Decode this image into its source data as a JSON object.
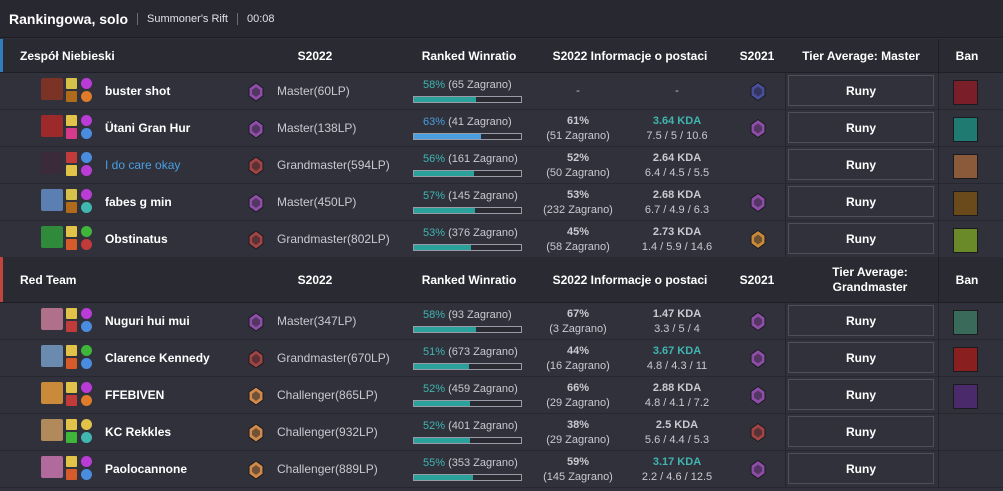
{
  "header": {
    "title": "Rankingowa, solo",
    "map": "Summoner's Rift",
    "time": "00:08"
  },
  "columns": {
    "s2022": "S2022",
    "ranked": "Ranked Winratio",
    "info": "S2022 Informacje o postaci",
    "s2021": "S2021",
    "ban": "Ban"
  },
  "blue_team": {
    "name": "Zespół Niebieski",
    "tier_average": "Tier Average: Master",
    "accent": "#2f7fbf",
    "players": [
      {
        "name": "buster shot",
        "me": false,
        "champ_color": "#7a3324",
        "spell1": "#d6c24a",
        "spell2": "#b06a1c",
        "rune1": "#b93cd6",
        "rune2": "#e07b2a",
        "tier": "Master(60LP)",
        "tier_color": "#8e4ea8",
        "wr_pct": "58%",
        "wr_games": "(65 Zagrano)",
        "wr_value": 58,
        "wr_blue": false,
        "s22_wr": "-",
        "s22_games": "",
        "kda": "-",
        "kda_hi": false,
        "kda_line": "",
        "s21_color": "#4a4f9c",
        "runy": "Runy",
        "ban_color": "#7a1f2a"
      },
      {
        "name": "Ütani Gran Hur",
        "me": false,
        "champ_color": "#9c2a2a",
        "spell1": "#e2c34a",
        "spell2": "#d63a8b",
        "rune1": "#b93cd6",
        "rune2": "#4a8de0",
        "tier": "Master(138LP)",
        "tier_color": "#8e4ea8",
        "wr_pct": "63%",
        "wr_games": "(41 Zagrano)",
        "wr_value": 63,
        "wr_blue": true,
        "s22_wr": "61%",
        "s22_games": "(51 Zagrano)",
        "kda": "3.64 KDA",
        "kda_hi": true,
        "kda_line": "7.5 / 5 / 10.6",
        "s21_color": "#8e4ea8",
        "runy": "Runy",
        "ban_color": "#1f7a72"
      },
      {
        "name": "I do care okay",
        "me": true,
        "champ_color": "#3a2a3a",
        "spell1": "#c23b3b",
        "spell2": "#e2c34a",
        "rune1": "#4a8de0",
        "rune2": "#b93cd6",
        "tier": "Grandmaster(594LP)",
        "tier_color": "#a14444",
        "wr_pct": "56%",
        "wr_games": "(161 Zagrano)",
        "wr_value": 56,
        "wr_blue": false,
        "s22_wr": "52%",
        "s22_games": "(50 Zagrano)",
        "kda": "2.64 KDA",
        "kda_hi": false,
        "kda_line": "6.4 / 4.5 / 5.5",
        "s21_color": "",
        "runy": "Runy",
        "ban_color": "#8a5a3a"
      },
      {
        "name": "fabes g min",
        "me": false,
        "champ_color": "#5a7fb0",
        "spell1": "#d6c24a",
        "spell2": "#b06a1c",
        "rune1": "#b93cd6",
        "rune2": "#3fb6b0",
        "tier": "Master(450LP)",
        "tier_color": "#8e4ea8",
        "wr_pct": "57%",
        "wr_games": "(145 Zagrano)",
        "wr_value": 57,
        "wr_blue": false,
        "s22_wr": "53%",
        "s22_games": "(232 Zagrano)",
        "kda": "2.68 KDA",
        "kda_hi": false,
        "kda_line": "6.7 / 4.9 / 6.3",
        "s21_color": "#8e4ea8",
        "runy": "Runy",
        "ban_color": "#6a4a1a"
      },
      {
        "name": "Obstinatus",
        "me": false,
        "champ_color": "#2f8a3a",
        "spell1": "#e2c34a",
        "spell2": "#d65a2a",
        "rune1": "#3fb63a",
        "rune2": "#c23b3b",
        "tier": "Grandmaster(802LP)",
        "tier_color": "#a14444",
        "wr_pct": "53%",
        "wr_games": "(376 Zagrano)",
        "wr_value": 53,
        "wr_blue": false,
        "s22_wr": "45%",
        "s22_games": "(58 Zagrano)",
        "kda": "2.73 KDA",
        "kda_hi": false,
        "kda_line": "1.4 / 5.9 / 14.6",
        "s21_color": "#c98a3a",
        "runy": "Runy",
        "ban_color": "#6a8a2a"
      }
    ]
  },
  "red_team": {
    "name": "Red Team",
    "tier_average": "Tier Average: Grandmaster",
    "accent": "#c0453c",
    "players": [
      {
        "name": "Nuguri hui mui",
        "me": false,
        "champ_color": "#b0708a",
        "spell1": "#e2c34a",
        "spell2": "#c23b3b",
        "rune1": "#b93cd6",
        "rune2": "#4a8de0",
        "tier": "Master(347LP)",
        "tier_color": "#8e4ea8",
        "wr_pct": "58%",
        "wr_games": "(93 Zagrano)",
        "wr_value": 58,
        "wr_blue": false,
        "s22_wr": "67%",
        "s22_games": "(3 Zagrano)",
        "kda": "1.47 KDA",
        "kda_hi": false,
        "kda_line": "3.3 / 5 / 4",
        "s21_color": "#8e4ea8",
        "runy": "Runy",
        "ban_color": "#3a6a5a"
      },
      {
        "name": "Clarence Kennedy",
        "me": false,
        "champ_color": "#6a8ab0",
        "spell1": "#e2c34a",
        "spell2": "#d65a2a",
        "rune1": "#3fb63a",
        "rune2": "#4a8de0",
        "tier": "Grandmaster(670LP)",
        "tier_color": "#a14444",
        "wr_pct": "51%",
        "wr_games": "(673 Zagrano)",
        "wr_value": 51,
        "wr_blue": false,
        "s22_wr": "44%",
        "s22_games": "(16 Zagrano)",
        "kda": "3.67 KDA",
        "kda_hi": true,
        "kda_line": "4.8 / 4.3 / 11",
        "s21_color": "#8e4ea8",
        "runy": "Runy",
        "ban_color": "#8a1f1f"
      },
      {
        "name": "FFEBIVEN",
        "me": false,
        "champ_color": "#c98a3a",
        "spell1": "#e2c34a",
        "spell2": "#c23b3b",
        "rune1": "#b93cd6",
        "rune2": "#e07b2a",
        "tier": "Challenger(865LP)",
        "tier_color": "#d08a4a",
        "wr_pct": "52%",
        "wr_games": "(459 Zagrano)",
        "wr_value": 52,
        "wr_blue": false,
        "s22_wr": "66%",
        "s22_games": "(29 Zagrano)",
        "kda": "2.88 KDA",
        "kda_hi": false,
        "kda_line": "4.8 / 4.1 / 7.2",
        "s21_color": "#8e4ea8",
        "runy": "Runy",
        "ban_color": "#4a2a6a"
      },
      {
        "name": "KC Rekkles",
        "me": false,
        "champ_color": "#b08a5a",
        "spell1": "#e2c34a",
        "spell2": "#3fb63a",
        "rune1": "#e2c34a",
        "rune2": "#3fb6b0",
        "tier": "Challenger(932LP)",
        "tier_color": "#d08a4a",
        "wr_pct": "52%",
        "wr_games": "(401 Zagrano)",
        "wr_value": 52,
        "wr_blue": false,
        "s22_wr": "38%",
        "s22_games": "(29 Zagrano)",
        "kda": "2.5 KDA",
        "kda_hi": false,
        "kda_line": "5.6 / 4.4 / 5.3",
        "s21_color": "#a14444",
        "runy": "Runy",
        "ban_color": ""
      },
      {
        "name": "Paolocannone",
        "me": false,
        "champ_color": "#b06a9c",
        "spell1": "#e2c34a",
        "spell2": "#d65a2a",
        "rune1": "#b93cd6",
        "rune2": "#4a8de0",
        "tier": "Challenger(889LP)",
        "tier_color": "#d08a4a",
        "wr_pct": "55%",
        "wr_games": "(353 Zagrano)",
        "wr_value": 55,
        "wr_blue": false,
        "s22_wr": "59%",
        "s22_games": "(145 Zagrano)",
        "kda": "3.17 KDA",
        "kda_hi": true,
        "kda_line": "2.2 / 4.6 / 12.5",
        "s21_color": "#8e4ea8",
        "runy": "Runy",
        "ban_color": ""
      }
    ]
  }
}
